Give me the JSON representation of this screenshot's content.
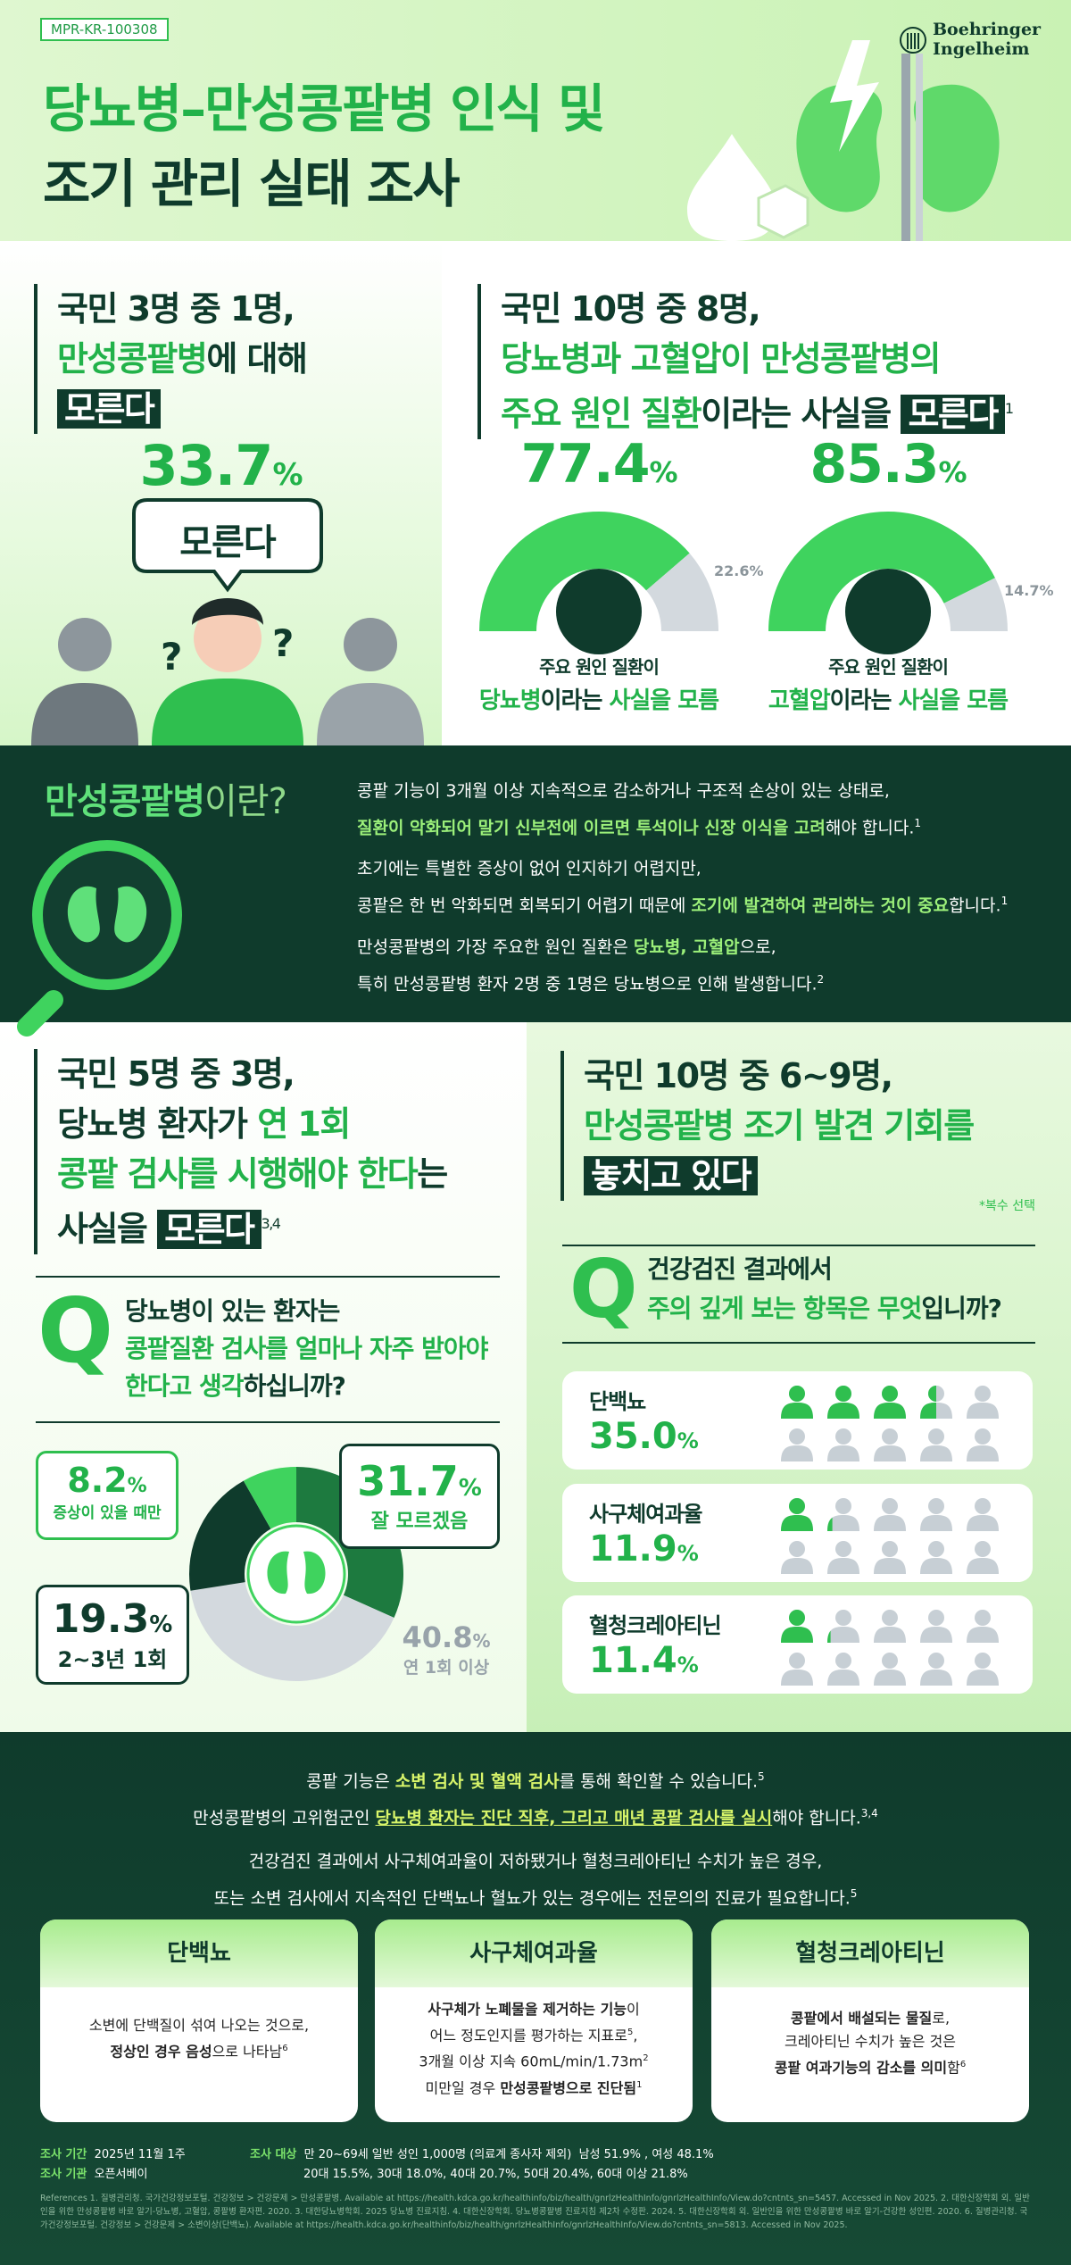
{
  "header": {
    "code": "MPR-KR-100308",
    "title": [
      "당뇨병–만성콩팥병 인식 및",
      "조기 관리 실태 조사"
    ],
    "logo": [
      "Boehringer",
      "Ingelheim"
    ]
  },
  "unaware_ckd": {
    "headline": [
      "국민 3명 중 1명,",
      "만성콩팥병",
      "에 대해",
      "모른다"
    ],
    "value": 33.7,
    "unit": "%",
    "bubble": "모른다"
  },
  "unaware_cause": {
    "headline": [
      "국민 10명 중 8명,",
      "당뇨병과 고혈압이 만성콩팥병의",
      "주요 원인 질환",
      "이라는 사실을 ",
      "모른다",
      "1"
    ],
    "gauges": [
      {
        "value": 77.4,
        "rest": 22.6,
        "unit": "%",
        "caption": [
          "주요 원인 질환이",
          "당뇨병",
          "이라는 ",
          "사실을 모름"
        ]
      },
      {
        "value": 85.3,
        "rest": 14.7,
        "unit": "%",
        "caption": [
          "주요 원인 질환이",
          "고혈압",
          "이라는 ",
          "사실을 모름"
        ]
      }
    ]
  },
  "about": {
    "title": [
      "만성콩팥병",
      "이란?"
    ],
    "paragraphs": [
      [
        [
          "콩팥 기능이 3개월 이상 지속적으로 감소하거나 구조적 손상이 있는 상태로,"
        ],
        [
          "질환이 악화되어 말기 신부전에 이르면 투석이나 신장 이식을 고려",
          "해야 합니다.",
          "1"
        ]
      ],
      [
        [
          "초기에는 특별한 증상이 없어 인지하기 어렵지만,"
        ],
        [
          "콩팥은 한 번 악화되면 회복되기 어렵기 때문에 ",
          "조기에 발견하여 관리하는 것이 중요",
          "합니다.",
          "1"
        ]
      ],
      [
        [
          "만성콩팥병의 가장 주요한 원인 질환은 ",
          "당뇨병, 고혈압",
          "으로,"
        ],
        [
          "특히 만성콩팥병 환자 2명 중 1명은 당뇨병으로 인해 발생합니다.",
          "2"
        ]
      ]
    ]
  },
  "check_frequency": {
    "headline": [
      "국민 5명 중 3명,",
      "당뇨병 환자가 ",
      "연 1회",
      "콩팥 검사를 시행해야 한다",
      "는",
      "사실을 ",
      "모른다",
      "3,4"
    ],
    "q": "Q",
    "question": [
      "당뇨병이 있는 환자는",
      "콩팥질환 검사를 얼마나 자주 받아야",
      "한다고 생각",
      "하십니까?"
    ],
    "unit": "%",
    "answers": [
      {
        "label": "잘 모르겠음",
        "value": 31.7,
        "color": "#1d7a3f"
      },
      {
        "label": "연 1회 이상",
        "value": 40.8,
        "color": "#d3d9de"
      },
      {
        "label": "2~3년 1회",
        "value": 19.3,
        "color": "#0f3b2c"
      },
      {
        "label": "증상이 있을 때만",
        "value": 8.2,
        "color": "#3fd35e"
      }
    ]
  },
  "checkup_items": {
    "headline": [
      "국민 10명 중 6~9명,",
      "만성콩팥병 조기 발견 기회를",
      "놓치고 있다"
    ],
    "note": "*복수 선택",
    "q": "Q",
    "question": [
      "건강검진 결과에서",
      "주의 깊게 보는 항목은 무엇",
      "입니까?"
    ],
    "unit": "%",
    "items": [
      {
        "name": "단백뇨",
        "value": 35,
        "value_label": "35.0"
      },
      {
        "name": "사구체여과율",
        "value": 11.9,
        "value_label": "11.9"
      },
      {
        "name": "혈청크레아티닌",
        "value": 11.4,
        "value_label": "11.4"
      }
    ]
  },
  "tests": {
    "intro": [
      [
        "콩팥 기능은 ",
        "소변 검사 및 혈액 검사",
        "를 통해 확인할 수 있습니다.",
        "5"
      ],
      [
        "만성콩팥병의 고위험군인 ",
        "당뇨병 환자는 진단 직후, 그리고 매년 콩팥 검사를 실시",
        "해야 합니다.",
        "3,4"
      ],
      [
        "건강검진 결과에서 사구체여과율이 저하됐거나 혈청크레아티닌 수치가 높은 경우,"
      ],
      [
        "또는 소변 검사에서 지속적인 단백뇨나 혈뇨가 있는 경우에는 전문의의 진료가 필요합니다.",
        "5"
      ]
    ],
    "cards": [
      {
        "title": "단백뇨",
        "lines": [
          [
            "소변에 단백질이 섞여 나오는 것으로,"
          ],
          [
            "정상인 경우 음성",
            "으로 나타남",
            "6"
          ]
        ]
      },
      {
        "title": "사구체여과율",
        "lines": [
          [
            "사구체가 노폐물을 제거하는 기능",
            "이"
          ],
          [
            "어느 정도인지를 평가하는 지표로",
            "5",
            ","
          ],
          [
            "3개월 이상 지속 60mL/min/1.73m",
            "2"
          ],
          [
            "미만일 경우 ",
            "만성콩팥병으로 진단됨",
            "1"
          ]
        ]
      },
      {
        "title": "혈청크레아티닌",
        "lines": [
          [
            "콩팥에서 배설되는 물질",
            "로,"
          ],
          [
            "크레아티닌 수치가 높은 것은"
          ],
          [
            "콩팥 여과기능의 감소를 의미",
            "함",
            "6"
          ]
        ]
      }
    ]
  },
  "survey": {
    "period_label": "조사 기간",
    "period": "2025년 11월 1주",
    "org_label": "조사 기관",
    "org": "오픈서베이",
    "target_label": "조사 대상",
    "target": [
      "만 20~69세 일반 성인 1,000명 (의료계 종사자 제외)",
      "남성 51.9% , 여성 48.1%",
      "20대 15.5%, 30대 18.0%, 40대 20.7%, 50대 20.4%, 60대 이상 21.8%"
    ]
  },
  "references": "References 1. 질병관리청. 국가건강정보포털. 건강정보 > 건강문제 > 만성콩팥병. Available at https://health.kdca.go.kr/healthinfo/biz/health/gnrlzHealthInfo/gnrlzHealthInfo/View.do?cntnts_sn=5457. Accessed in Nov 2025. 2. 대한신장학회 외. 일반인을 위한 만성콩팥병 바로 알기-당뇨병, 고혈압, 콩팥병 환자편. 2020. 3. 대한당뇨병학회. 2025 당뇨병 진료지침. 4. 대한신장학회. 당뇨병콩팥병 진료지침 제2차 수정판. 2024. 5. 대한신장학회 외. 일반인을 위한 만성콩팥병 바로 알기-건강한 성인편. 2020. 6. 질병관리청. 국가건강정보포털. 건강정보 > 건강문제 > 소변이상(단백뇨). Available at https://health.kdca.go.kr/healthinfo/biz/health/gnrlzHealthInfo/gnrlzHealthInfo/View.do?cntnts_sn=5813. Accessed in Nov 2025."
}
